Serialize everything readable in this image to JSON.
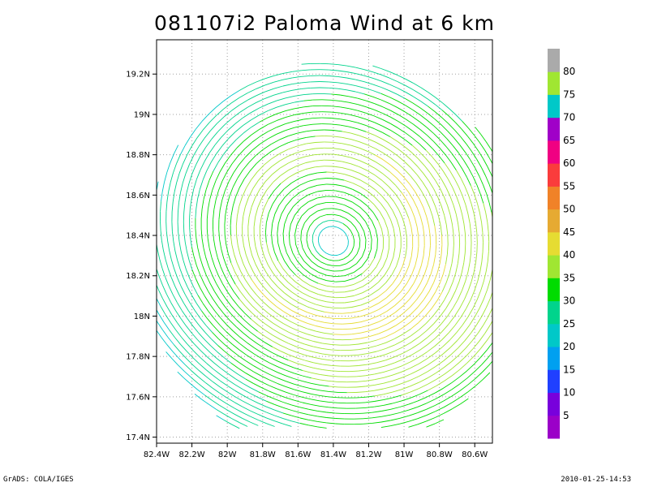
{
  "chart_data": {
    "type": "streamline",
    "title": "081107i2 Paloma Wind at 6 km",
    "xlabel": "",
    "ylabel": "",
    "xlim": [
      -82.4,
      -80.5
    ],
    "ylim": [
      17.37,
      19.37
    ],
    "x_ticks": [
      {
        "value": -82.4,
        "label": "82.4W"
      },
      {
        "value": -82.2,
        "label": "82.2W"
      },
      {
        "value": -82.0,
        "label": "82W"
      },
      {
        "value": -81.8,
        "label": "81.8W"
      },
      {
        "value": -81.6,
        "label": "81.6W"
      },
      {
        "value": -81.4,
        "label": "81.4W"
      },
      {
        "value": -81.2,
        "label": "81.2W"
      },
      {
        "value": -81.0,
        "label": "81W"
      },
      {
        "value": -80.8,
        "label": "80.8W"
      },
      {
        "value": -80.6,
        "label": "80.6W"
      }
    ],
    "y_ticks": [
      {
        "value": 17.4,
        "label": "17.4N"
      },
      {
        "value": 17.6,
        "label": "17.6N"
      },
      {
        "value": 17.8,
        "label": "17.8N"
      },
      {
        "value": 18.0,
        "label": "18N"
      },
      {
        "value": 18.2,
        "label": "18.2N"
      },
      {
        "value": 18.4,
        "label": "18.4N"
      },
      {
        "value": 18.6,
        "label": "18.6N"
      },
      {
        "value": 18.8,
        "label": "18.8N"
      },
      {
        "value": 19.0,
        "label": "19N"
      },
      {
        "value": 19.2,
        "label": "19.2N"
      }
    ],
    "grid": true,
    "circulation_center": {
      "lon": -81.4,
      "lat": 18.4
    },
    "colorbar": {
      "bins": [
        {
          "color": "#9b00c8",
          "label": "5"
        },
        {
          "color": "#7800dc",
          "label": "10"
        },
        {
          "color": "#2040ff",
          "label": "15"
        },
        {
          "color": "#00a0f0",
          "label": "20"
        },
        {
          "color": "#00c8c8",
          "label": "25"
        },
        {
          "color": "#00d48c",
          "label": "30"
        },
        {
          "color": "#00dc00",
          "label": "35"
        },
        {
          "color": "#a0e632",
          "label": "40"
        },
        {
          "color": "#e6dc32",
          "label": "45"
        },
        {
          "color": "#e6aa32",
          "label": "50"
        },
        {
          "color": "#f08228",
          "label": "55"
        },
        {
          "color": "#fa3c3c",
          "label": "60"
        },
        {
          "color": "#f00082",
          "label": "65"
        },
        {
          "color": "#a000c8",
          "label": "70"
        },
        {
          "color": "#00c8c8",
          "label": "75"
        },
        {
          "color": "#a0e632",
          "label": "80"
        },
        {
          "color": "#aaaaaa",
          "label": ""
        }
      ]
    }
  },
  "footer": {
    "left": "GrADS: COLA/IGES",
    "right": "2010-01-25-14:53"
  }
}
